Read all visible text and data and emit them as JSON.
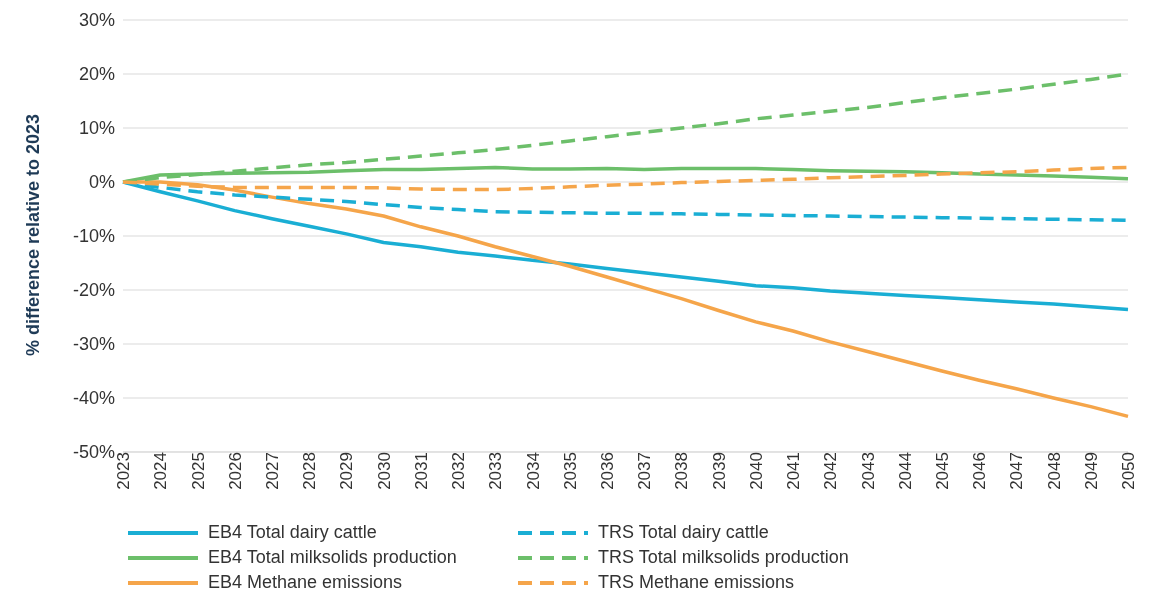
{
  "chart_data": {
    "type": "line",
    "ylabel": "% difference relative to 2023",
    "categories": [
      "2023",
      "2024",
      "2025",
      "2026",
      "2027",
      "2028",
      "2029",
      "2030",
      "2031",
      "2032",
      "2033",
      "2034",
      "2035",
      "2036",
      "2037",
      "2038",
      "2039",
      "2040",
      "2041",
      "2042",
      "2043",
      "2044",
      "2045",
      "2046",
      "2047",
      "2048",
      "2049",
      "2050"
    ],
    "series": [
      {
        "name": "EB4 Total dairy cattle",
        "color": "#1aaed4",
        "line_style": "solid",
        "values": [
          0,
          -1.8,
          -3.5,
          -5.3,
          -6.8,
          -8.2,
          -9.6,
          -11.2,
          -12,
          -13,
          -13.7,
          -14.5,
          -15.2,
          -16,
          -16.8,
          -17.6,
          -18.4,
          -19.2,
          -19.6,
          -20.2,
          -20.6,
          -21,
          -21.4,
          -21.8,
          -22.2,
          -22.6,
          -23.1,
          -23.6
        ]
      },
      {
        "name": "EB4 Total milksolids production",
        "color": "#6cbf6a",
        "line_style": "solid",
        "values": [
          0,
          1.3,
          1.5,
          1.6,
          1.7,
          1.8,
          2.1,
          2.3,
          2.3,
          2.5,
          2.7,
          2.4,
          2.4,
          2.5,
          2.3,
          2.5,
          2.5,
          2.5,
          2.3,
          2.1,
          2,
          1.9,
          1.7,
          1.5,
          1.3,
          1.1,
          0.9,
          0.6
        ]
      },
      {
        "name": "EB4 Methane emissions",
        "color": "#f5a54a",
        "line_style": "solid",
        "values": [
          0,
          0,
          -0.5,
          -1.5,
          -2.8,
          -4,
          -5,
          -6.3,
          -8.3,
          -10,
          -12,
          -13.8,
          -15.6,
          -17.6,
          -19.6,
          -21.6,
          -23.8,
          -25.9,
          -27.6,
          -29.6,
          -31.4,
          -33.2,
          -35,
          -36.7,
          -38.3,
          -40,
          -41.6,
          -43.4
        ]
      },
      {
        "name": "TRS Total dairy cattle",
        "color": "#1aaed4",
        "line_style": "dashed",
        "values": [
          0,
          -1,
          -1.8,
          -2.4,
          -2.8,
          -3.2,
          -3.6,
          -4.2,
          -4.7,
          -5.1,
          -5.5,
          -5.6,
          -5.7,
          -5.8,
          -5.8,
          -5.9,
          -6,
          -6.1,
          -6.2,
          -6.3,
          -6.4,
          -6.5,
          -6.6,
          -6.7,
          -6.8,
          -6.9,
          -7,
          -7.1
        ]
      },
      {
        "name": "TRS Total milksolids production",
        "color": "#6cbf6a",
        "line_style": "dashed",
        "values": [
          0,
          0.8,
          1.4,
          2,
          2.6,
          3.2,
          3.6,
          4.2,
          4.8,
          5.4,
          6,
          6.8,
          7.6,
          8.4,
          9.2,
          10,
          10.8,
          11.7,
          12.4,
          13.1,
          13.8,
          14.7,
          15.6,
          16.4,
          17.2,
          18.1,
          19,
          20
        ]
      },
      {
        "name": "TRS Methane emissions",
        "color": "#f5a54a",
        "line_style": "dashed",
        "values": [
          0,
          -0.4,
          -0.8,
          -1,
          -1,
          -1,
          -1,
          -1.1,
          -1.3,
          -1.4,
          -1.4,
          -1.2,
          -0.9,
          -0.6,
          -0.4,
          -0.1,
          0.1,
          0.3,
          0.5,
          0.8,
          1,
          1.2,
          1.5,
          1.7,
          1.9,
          2.2,
          2.5,
          2.7
        ]
      }
    ],
    "ylim": [
      -50,
      30
    ],
    "yticks": [
      {
        "value": -50,
        "label": "-50%"
      },
      {
        "value": -40,
        "label": "-40%"
      },
      {
        "value": -30,
        "label": "-30%"
      },
      {
        "value": -20,
        "label": "-20%"
      },
      {
        "value": -10,
        "label": "-10%"
      },
      {
        "value": 0,
        "label": "0%"
      },
      {
        "value": 10,
        "label": "10%"
      },
      {
        "value": 20,
        "label": "20%"
      },
      {
        "value": 30,
        "label": "30%"
      }
    ],
    "grid": "y",
    "legend": "bottom",
    "marker": "none"
  }
}
